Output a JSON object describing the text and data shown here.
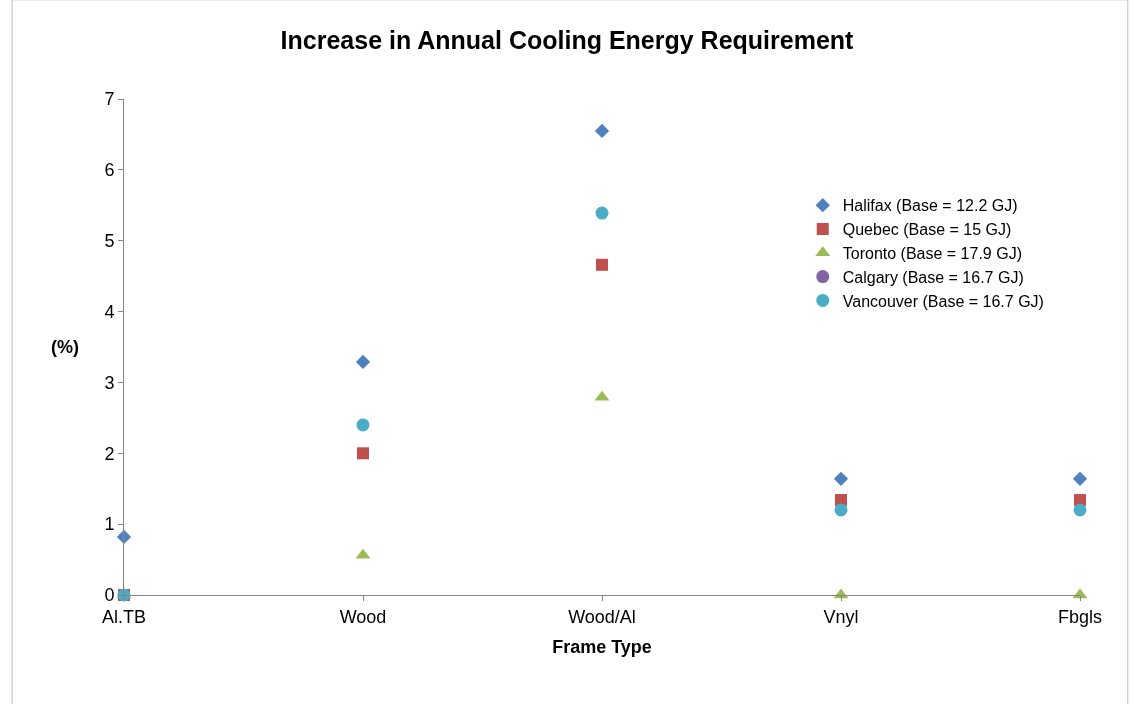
{
  "chart_data": {
    "type": "scatter",
    "title": "Increase in Annual Cooling Energy Requirement",
    "xlabel": "Frame Type",
    "ylabel": "(%)",
    "categories": [
      "Al.TB",
      "Wood",
      "Wood/Al",
      "Vnyl",
      "Fbgls"
    ],
    "series": [
      {
        "name": "Halifax (Base = 12.2 GJ)",
        "color": "#4f81bd",
        "marker": "diamond",
        "values": [
          0.82,
          3.29,
          6.55,
          1.64,
          1.64
        ]
      },
      {
        "name": "Quebec (Base = 15 GJ)",
        "color": "#c0504d",
        "marker": "square",
        "values": [
          0,
          2.0,
          4.66,
          1.34,
          1.34
        ]
      },
      {
        "name": "Toronto (Base = 17.9 GJ)",
        "color": "#9bbb59",
        "marker": "triangle",
        "values": [
          0,
          0.56,
          2.79,
          0,
          0
        ]
      },
      {
        "name": "Calgary (Base = 16.7 GJ)",
        "color": "#8064a2",
        "marker": "circle",
        "values": [
          null,
          null,
          null,
          null,
          null
        ]
      },
      {
        "name": "Vancouver (Base = 16.7 GJ)",
        "color": "#4bacc6",
        "marker": "circle",
        "values": [
          0,
          2.4,
          5.39,
          1.2,
          1.2
        ]
      }
    ],
    "ylim": [
      0,
      7
    ],
    "yticks": [
      0,
      1,
      2,
      3,
      4,
      5,
      6,
      7
    ],
    "grid": false,
    "legend": "top right"
  }
}
